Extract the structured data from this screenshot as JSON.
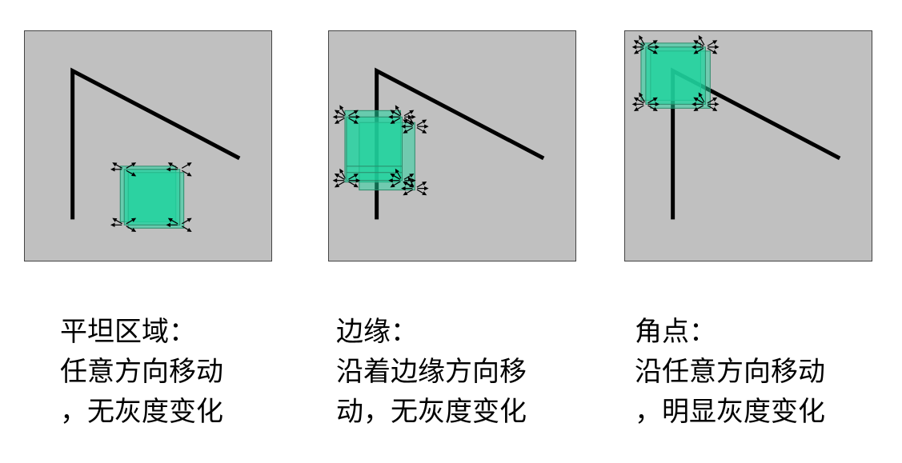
{
  "panels": [
    {
      "id": "flat",
      "caption_lines": [
        "平坦区域：",
        "任意方向移动",
        "，无灰度变化"
      ]
    },
    {
      "id": "edge",
      "caption_lines": [
        "边缘：",
        "沿着边缘方向移",
        "动，无灰度变化"
      ]
    },
    {
      "id": "corner",
      "caption_lines": [
        "角点：",
        "沿任意方向移动",
        "，明显灰度变化"
      ]
    }
  ],
  "colors": {
    "panel_background": "#c0c0c0",
    "window_fill": "#1fd39e",
    "line": "#000000",
    "arrow": "#000000"
  },
  "icons": [
    "motion-arrow-icon"
  ]
}
